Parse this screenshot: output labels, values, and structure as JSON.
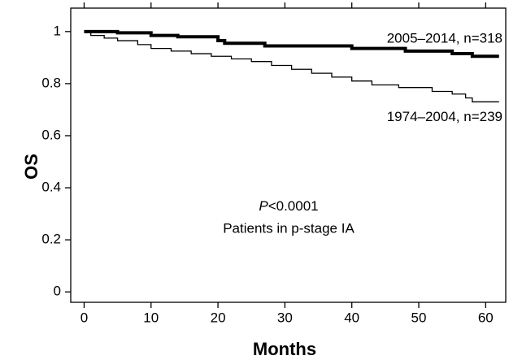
{
  "chart_data": {
    "type": "step",
    "xlabel": "Months",
    "ylabel": "OS",
    "xlim": [
      -2,
      63
    ],
    "ylim": [
      -0.04,
      1.09
    ],
    "xticks": [
      0,
      10,
      20,
      30,
      40,
      50,
      60
    ],
    "yticks": [
      0,
      0.2,
      0.4,
      0.6,
      0.8,
      1
    ],
    "annotations": [
      "P",
      "<0.0001",
      "Patients in p-stage IA"
    ],
    "series": [
      {
        "name": "2005–2014, n=318",
        "color": "#000000",
        "width": 4,
        "x": [
          0,
          5,
          10,
          14,
          20,
          21,
          27,
          40,
          48,
          55,
          58,
          62
        ],
        "values": [
          1.0,
          0.995,
          0.985,
          0.98,
          0.965,
          0.955,
          0.945,
          0.935,
          0.925,
          0.915,
          0.905,
          0.905
        ]
      },
      {
        "name": "1974–2004, n=239",
        "color": "#000000",
        "width": 1.3,
        "x": [
          0,
          1,
          3,
          5,
          8,
          10,
          13,
          16,
          19,
          22,
          25,
          28,
          31,
          34,
          37,
          40,
          43,
          47,
          52,
          55,
          57,
          58,
          62
        ],
        "values": [
          1.0,
          0.985,
          0.975,
          0.965,
          0.95,
          0.935,
          0.925,
          0.915,
          0.905,
          0.895,
          0.885,
          0.87,
          0.855,
          0.84,
          0.825,
          0.81,
          0.795,
          0.785,
          0.77,
          0.76,
          0.745,
          0.73,
          0.73
        ]
      }
    ]
  }
}
